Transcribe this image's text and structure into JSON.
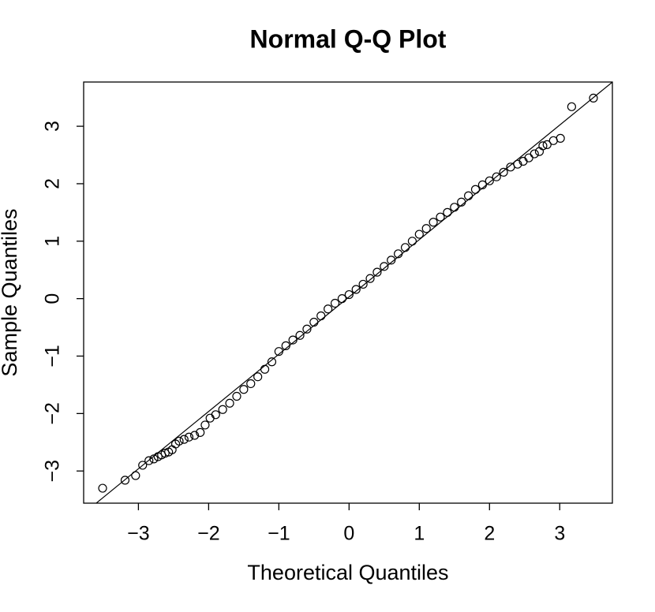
{
  "chart_data": {
    "type": "scatter",
    "title": "Normal Q-Q Plot",
    "x_label": "Theoretical Quantiles",
    "y_label": "Sample Quantiles",
    "xlim": [
      -3.78,
      3.75
    ],
    "ylim": [
      -3.56,
      3.77
    ],
    "xticks": [
      {
        "value": -3,
        "label": "−3"
      },
      {
        "value": -2,
        "label": "−2"
      },
      {
        "value": -1,
        "label": "−1"
      },
      0,
      1,
      2,
      3
    ],
    "yticks": [
      {
        "value": -3,
        "label": "−3"
      },
      {
        "value": -2,
        "label": "−2"
      },
      {
        "value": -1,
        "label": "−1"
      },
      0,
      1,
      2,
      3
    ],
    "color": "#000000",
    "reference_line": {
      "intercept": 0.03,
      "slope": 0.997
    },
    "x": [
      -3.51,
      -3.19,
      -3.04,
      -2.94,
      -2.85,
      -2.78,
      -2.72,
      -2.67,
      -2.62,
      -2.57,
      -2.52,
      -2.47,
      -2.42,
      -2.35,
      -2.28,
      -2.2,
      -2.12,
      -2.05,
      -1.98,
      -1.9,
      -1.8,
      -1.7,
      -1.6,
      -1.5,
      -1.4,
      -1.3,
      -1.2,
      -1.1,
      -1.0,
      -0.9,
      -0.8,
      -0.7,
      -0.6,
      -0.5,
      -0.4,
      -0.3,
      -0.2,
      -0.1,
      0.0,
      0.1,
      0.2,
      0.3,
      0.4,
      0.5,
      0.6,
      0.7,
      0.8,
      0.9,
      1.0,
      1.1,
      1.2,
      1.3,
      1.4,
      1.5,
      1.6,
      1.7,
      1.8,
      1.9,
      2.0,
      2.1,
      2.2,
      2.3,
      2.4,
      2.48,
      2.56,
      2.64,
      2.71,
      2.76,
      2.82,
      2.91,
      3.01,
      3.17,
      3.48
    ],
    "values": [
      -3.3,
      -3.16,
      -3.08,
      -2.9,
      -2.82,
      -2.79,
      -2.75,
      -2.72,
      -2.69,
      -2.67,
      -2.63,
      -2.53,
      -2.48,
      -2.45,
      -2.41,
      -2.38,
      -2.33,
      -2.2,
      -2.08,
      -2.02,
      -1.93,
      -1.82,
      -1.7,
      -1.58,
      -1.48,
      -1.36,
      -1.23,
      -1.1,
      -0.92,
      -0.82,
      -0.72,
      -0.64,
      -0.53,
      -0.41,
      -0.3,
      -0.18,
      -0.08,
      0.0,
      0.07,
      0.16,
      0.25,
      0.35,
      0.46,
      0.56,
      0.67,
      0.78,
      0.89,
      1.0,
      1.12,
      1.22,
      1.33,
      1.42,
      1.5,
      1.59,
      1.68,
      1.79,
      1.9,
      1.98,
      2.05,
      2.12,
      2.2,
      2.29,
      2.34,
      2.39,
      2.45,
      2.52,
      2.56,
      2.66,
      2.68,
      2.75,
      2.79,
      3.34,
      3.49
    ]
  }
}
